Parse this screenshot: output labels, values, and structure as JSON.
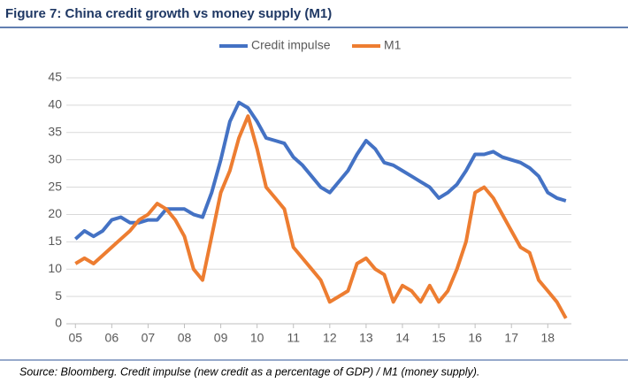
{
  "chart_data": {
    "type": "line",
    "title": "Figure 7: China credit growth vs money supply (M1)",
    "source": "Source: Bloomberg. Credit impulse (new credit as a percentage of GDP) / M1 (money supply).",
    "x": [
      5,
      5.25,
      5.5,
      5.75,
      6,
      6.25,
      6.5,
      6.75,
      7,
      7.25,
      7.5,
      7.75,
      8,
      8.25,
      8.5,
      8.75,
      9,
      9.25,
      9.5,
      9.75,
      10,
      10.25,
      10.5,
      10.75,
      11,
      11.25,
      11.5,
      11.75,
      12,
      12.25,
      12.5,
      12.75,
      13,
      13.25,
      13.5,
      13.75,
      14,
      14.25,
      14.5,
      14.75,
      15,
      15.25,
      15.5,
      15.75,
      16,
      16.25,
      16.5,
      16.75,
      17,
      17.25,
      17.5,
      17.75,
      18,
      18.25,
      18.5
    ],
    "series": [
      {
        "name": "Credit impulse",
        "color": "#4472c4",
        "values": [
          15.5,
          17,
          16,
          17,
          19,
          19.5,
          18.5,
          18.5,
          19,
          19,
          21,
          21,
          21,
          20,
          19.5,
          24,
          30,
          37,
          40.5,
          39.5,
          37,
          34,
          33.5,
          33,
          30.5,
          29,
          27,
          25,
          24,
          26,
          28,
          31,
          33.5,
          32,
          29.5,
          29,
          28,
          27,
          26,
          25,
          23,
          24,
          25.5,
          28,
          31,
          31,
          31.5,
          30.5,
          30,
          29.5,
          28.5,
          27,
          24,
          23,
          22.5
        ]
      },
      {
        "name": "M1",
        "color": "#ed7d31",
        "values": [
          11,
          12,
          11,
          12.5,
          14,
          15.5,
          17,
          19,
          20,
          22,
          21,
          19,
          16,
          10,
          8,
          16,
          24,
          28,
          34,
          38,
          32,
          25,
          23,
          21,
          14,
          12,
          10,
          8,
          4,
          5,
          6,
          11,
          12,
          10,
          9,
          4,
          7,
          6,
          4,
          7,
          4,
          6,
          10,
          15,
          24,
          25,
          23,
          20,
          17,
          14,
          13,
          8,
          6,
          4,
          1
        ]
      }
    ],
    "xlim": [
      4.75,
      18.65
    ],
    "xticks": [
      {
        "value": 5,
        "label": "05"
      },
      {
        "value": 6,
        "label": "06"
      },
      {
        "value": 7,
        "label": "07"
      },
      {
        "value": 8,
        "label": "08"
      },
      {
        "value": 9,
        "label": "09"
      },
      10,
      11,
      12,
      13,
      14,
      15,
      16,
      17,
      18
    ],
    "ylim": [
      0,
      45
    ],
    "yticks": [
      0,
      5,
      10,
      15,
      20,
      25,
      30,
      35,
      40,
      45
    ],
    "grid": true
  }
}
